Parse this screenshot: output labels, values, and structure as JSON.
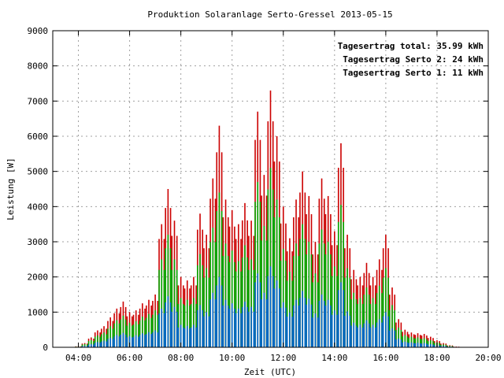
{
  "chart_data": {
    "type": "bar",
    "title": "Produktion Solaranlage Serto-Gressel 2013-05-15",
    "xlabel": "Zeit (UTC)",
    "ylabel": "Leistung [W]",
    "x_range_hours": [
      3,
      20
    ],
    "ylim": [
      0,
      9000
    ],
    "yticks": [
      0,
      1000,
      2000,
      3000,
      4000,
      5000,
      6000,
      7000,
      8000,
      9000
    ],
    "xticks": [
      {
        "hour": 4,
        "label": "04:00"
      },
      {
        "hour": 6,
        "label": "06:00"
      },
      {
        "hour": 8,
        "label": "08:00"
      },
      {
        "hour": 10,
        "label": "10:00"
      },
      {
        "hour": 12,
        "label": "12:00"
      },
      {
        "hour": 14,
        "label": "14:00"
      },
      {
        "hour": 16,
        "label": "16:00"
      },
      {
        "hour": 18,
        "label": "18:00"
      },
      {
        "hour": 20,
        "label": "20:00"
      }
    ],
    "grid": true,
    "legend_position": "top-right",
    "legend": [
      {
        "text": "Tagesertrag total: 35.99 kWh",
        "color": "#cc0000"
      },
      {
        "text": "Tagesertrag Serto 2: 24 kWh",
        "color": "#00aa00"
      },
      {
        "text": "Tagesertrag Serto 1: 11 kWh",
        "color": "#0066cc"
      }
    ],
    "series": [
      {
        "name": "total",
        "color": "#cc0000",
        "points": [
          [
            "04:00",
            30
          ],
          [
            "04:15",
            120
          ],
          [
            "04:30",
            280
          ],
          [
            "04:45",
            480
          ],
          [
            "05:00",
            600
          ],
          [
            "05:15",
            850
          ],
          [
            "05:30",
            1100
          ],
          [
            "05:45",
            1300
          ],
          [
            "06:00",
            1000
          ],
          [
            "06:15",
            1050
          ],
          [
            "06:30",
            1250
          ],
          [
            "06:45",
            1350
          ],
          [
            "07:00",
            1500
          ],
          [
            "07:15",
            3500
          ],
          [
            "07:30",
            4500
          ],
          [
            "07:45",
            3600
          ],
          [
            "08:00",
            2000
          ],
          [
            "08:15",
            1900
          ],
          [
            "08:30",
            2000
          ],
          [
            "08:45",
            3800
          ],
          [
            "09:00",
            3200
          ],
          [
            "09:15",
            4800
          ],
          [
            "09:30",
            6300
          ],
          [
            "09:45",
            4200
          ],
          [
            "10:00",
            3900
          ],
          [
            "10:15",
            3500
          ],
          [
            "10:30",
            4100
          ],
          [
            "10:45",
            3600
          ],
          [
            "11:00",
            6700
          ],
          [
            "11:15",
            4900
          ],
          [
            "11:30",
            7300
          ],
          [
            "11:45",
            6000
          ],
          [
            "12:00",
            4000
          ],
          [
            "12:15",
            3100
          ],
          [
            "12:30",
            4200
          ],
          [
            "12:45",
            5000
          ],
          [
            "13:00",
            4300
          ],
          [
            "13:15",
            3000
          ],
          [
            "13:30",
            4800
          ],
          [
            "13:45",
            4300
          ],
          [
            "14:00",
            3300
          ],
          [
            "14:15",
            5800
          ],
          [
            "14:30",
            3200
          ],
          [
            "14:45",
            2200
          ],
          [
            "15:00",
            2000
          ],
          [
            "15:15",
            2400
          ],
          [
            "15:30",
            2000
          ],
          [
            "15:45",
            2500
          ],
          [
            "16:00",
            3200
          ],
          [
            "16:15",
            1700
          ],
          [
            "16:30",
            800
          ],
          [
            "16:45",
            500
          ],
          [
            "17:00",
            420
          ],
          [
            "17:15",
            400
          ],
          [
            "17:30",
            380
          ],
          [
            "17:45",
            300
          ],
          [
            "18:00",
            200
          ],
          [
            "18:15",
            120
          ],
          [
            "18:30",
            60
          ],
          [
            "18:45",
            20
          ]
        ]
      },
      {
        "name": "Serto 2",
        "color": "#00aa00",
        "points": [
          [
            "04:00",
            20
          ],
          [
            "04:15",
            90
          ],
          [
            "04:30",
            200
          ],
          [
            "04:45",
            340
          ],
          [
            "05:00",
            420
          ],
          [
            "05:15",
            600
          ],
          [
            "05:30",
            770
          ],
          [
            "05:45",
            900
          ],
          [
            "06:00",
            700
          ],
          [
            "06:15",
            740
          ],
          [
            "06:30",
            870
          ],
          [
            "06:45",
            950
          ],
          [
            "07:00",
            1050
          ],
          [
            "07:15",
            2500
          ],
          [
            "07:30",
            3200
          ],
          [
            "07:45",
            2500
          ],
          [
            "08:00",
            1400
          ],
          [
            "08:15",
            1350
          ],
          [
            "08:30",
            1400
          ],
          [
            "08:45",
            2650
          ],
          [
            "09:00",
            2250
          ],
          [
            "09:15",
            3400
          ],
          [
            "09:30",
            4400
          ],
          [
            "09:45",
            2950
          ],
          [
            "10:00",
            2750
          ],
          [
            "10:15",
            2450
          ],
          [
            "10:30",
            2900
          ],
          [
            "10:45",
            2500
          ],
          [
            "11:00",
            4700
          ],
          [
            "11:15",
            3450
          ],
          [
            "11:30",
            5100
          ],
          [
            "11:45",
            4200
          ],
          [
            "12:00",
            2800
          ],
          [
            "12:15",
            2150
          ],
          [
            "12:30",
            2950
          ],
          [
            "12:45",
            3500
          ],
          [
            "13:00",
            3000
          ],
          [
            "13:15",
            2100
          ],
          [
            "13:30",
            3350
          ],
          [
            "13:45",
            3000
          ],
          [
            "14:00",
            2300
          ],
          [
            "14:15",
            4050
          ],
          [
            "14:30",
            2250
          ],
          [
            "14:45",
            1550
          ],
          [
            "15:00",
            1400
          ],
          [
            "15:15",
            1700
          ],
          [
            "15:30",
            1400
          ],
          [
            "15:45",
            1750
          ],
          [
            "16:00",
            2250
          ],
          [
            "16:15",
            1200
          ],
          [
            "16:30",
            560
          ],
          [
            "16:45",
            350
          ],
          [
            "17:00",
            300
          ],
          [
            "17:15",
            280
          ],
          [
            "17:30",
            260
          ],
          [
            "17:45",
            200
          ],
          [
            "18:00",
            140
          ],
          [
            "18:15",
            80
          ],
          [
            "18:30",
            40
          ],
          [
            "18:45",
            10
          ]
        ]
      },
      {
        "name": "Serto 1",
        "color": "#0066cc",
        "points": [
          [
            "04:00",
            10
          ],
          [
            "04:15",
            40
          ],
          [
            "04:30",
            90
          ],
          [
            "04:45",
            150
          ],
          [
            "05:00",
            190
          ],
          [
            "05:15",
            270
          ],
          [
            "05:30",
            350
          ],
          [
            "05:45",
            410
          ],
          [
            "06:00",
            320
          ],
          [
            "06:15",
            340
          ],
          [
            "06:30",
            400
          ],
          [
            "06:45",
            430
          ],
          [
            "07:00",
            480
          ],
          [
            "07:15",
            1100
          ],
          [
            "07:30",
            1450
          ],
          [
            "07:45",
            1150
          ],
          [
            "08:00",
            640
          ],
          [
            "08:15",
            610
          ],
          [
            "08:30",
            640
          ],
          [
            "08:45",
            1200
          ],
          [
            "09:00",
            1000
          ],
          [
            "09:15",
            1550
          ],
          [
            "09:30",
            2000
          ],
          [
            "09:45",
            1350
          ],
          [
            "10:00",
            1250
          ],
          [
            "10:15",
            1100
          ],
          [
            "10:30",
            1300
          ],
          [
            "10:45",
            1150
          ],
          [
            "11:00",
            2100
          ],
          [
            "11:15",
            1550
          ],
          [
            "11:30",
            2300
          ],
          [
            "11:45",
            1900
          ],
          [
            "12:00",
            1280
          ],
          [
            "12:15",
            990
          ],
          [
            "12:30",
            1350
          ],
          [
            "12:45",
            1600
          ],
          [
            "13:00",
            1380
          ],
          [
            "13:15",
            960
          ],
          [
            "13:30",
            1500
          ],
          [
            "13:45",
            1350
          ],
          [
            "14:00",
            1050
          ],
          [
            "14:15",
            1850
          ],
          [
            "14:30",
            1020
          ],
          [
            "14:45",
            700
          ],
          [
            "15:00",
            640
          ],
          [
            "15:15",
            770
          ],
          [
            "15:30",
            640
          ],
          [
            "15:45",
            800
          ],
          [
            "16:00",
            1000
          ],
          [
            "16:15",
            540
          ],
          [
            "16:30",
            250
          ],
          [
            "16:45",
            160
          ],
          [
            "17:00",
            140
          ],
          [
            "17:15",
            130
          ],
          [
            "17:30",
            120
          ],
          [
            "17:45",
            90
          ],
          [
            "18:00",
            60
          ],
          [
            "18:15",
            40
          ],
          [
            "18:30",
            20
          ],
          [
            "18:45",
            5
          ]
        ]
      }
    ]
  }
}
